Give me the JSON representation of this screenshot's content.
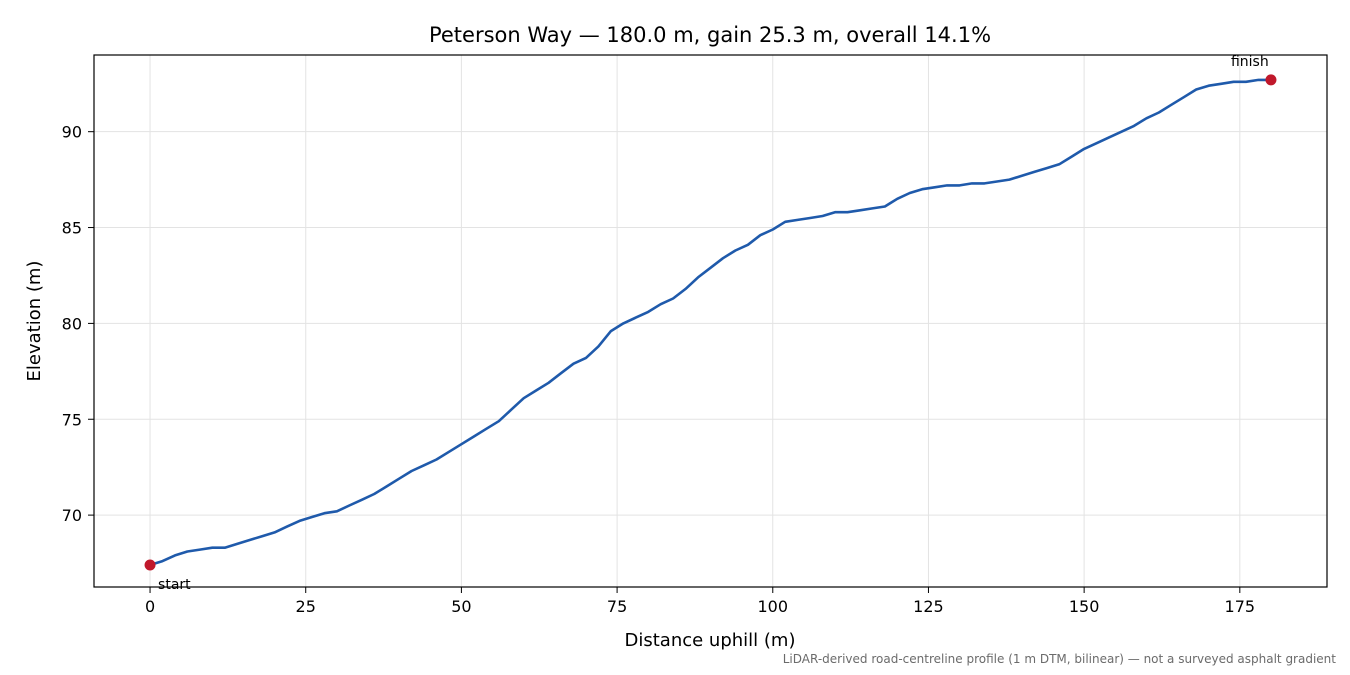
{
  "chart_data": {
    "type": "line",
    "title": "Peterson Way — 180.0 m, gain 25.3 m, overall 14.1%",
    "xlabel": "Distance uphill (m)",
    "ylabel": "Elevation (m)",
    "xlim": [
      -9,
      189
    ],
    "ylim": [
      66.25,
      94.0
    ],
    "xticks": [
      0,
      25,
      50,
      75,
      100,
      125,
      150,
      175
    ],
    "yticks": [
      70,
      75,
      80,
      85,
      90
    ],
    "grid": true,
    "line_color": "#1f5aab",
    "marker_color": "#c0182b",
    "series": [
      {
        "x": [
          0,
          2,
          4,
          6,
          8,
          10,
          12,
          14,
          16,
          18,
          20,
          22,
          24,
          26,
          28,
          30,
          32,
          34,
          36,
          38,
          40,
          42,
          44,
          46,
          48,
          50,
          52,
          54,
          56,
          58,
          60,
          62,
          64,
          66,
          68,
          70,
          72,
          74,
          76,
          78,
          80,
          82,
          84,
          86,
          88,
          90,
          92,
          94,
          96,
          98,
          100,
          102,
          104,
          106,
          108,
          110,
          112,
          114,
          116,
          118,
          120,
          122,
          124,
          126,
          128,
          130,
          132,
          134,
          136,
          138,
          140,
          142,
          144,
          146,
          148,
          150,
          152,
          154,
          156,
          158,
          160,
          162,
          164,
          166,
          168,
          170,
          172,
          174,
          176,
          178,
          180
        ],
        "y": [
          67.4,
          67.6,
          67.9,
          68.1,
          68.2,
          68.3,
          68.3,
          68.5,
          68.7,
          68.9,
          69.1,
          69.4,
          69.7,
          69.9,
          70.1,
          70.2,
          70.5,
          70.8,
          71.1,
          71.5,
          71.9,
          72.3,
          72.6,
          72.9,
          73.3,
          73.7,
          74.1,
          74.5,
          74.9,
          75.5,
          76.1,
          76.5,
          76.9,
          77.4,
          77.9,
          78.2,
          78.8,
          79.6,
          80.0,
          80.3,
          80.6,
          81.0,
          81.3,
          81.8,
          82.4,
          82.9,
          83.4,
          83.8,
          84.1,
          84.6,
          84.9,
          85.3,
          85.4,
          85.5,
          85.6,
          85.8,
          85.8,
          85.9,
          86.0,
          86.1,
          86.5,
          86.8,
          87.0,
          87.1,
          87.2,
          87.2,
          87.3,
          87.3,
          87.4,
          87.5,
          87.7,
          87.9,
          88.1,
          88.3,
          88.7,
          89.1,
          89.4,
          89.7,
          90.0,
          90.3,
          90.7,
          91.0,
          91.4,
          91.8,
          92.2,
          92.4,
          92.5,
          92.6,
          92.6,
          92.7,
          92.7
        ]
      }
    ],
    "annotations": [
      {
        "text": "start",
        "x": 0,
        "y": 67.4
      },
      {
        "text": "finish",
        "x": 180,
        "y": 92.7
      }
    ],
    "footnote": "LiDAR-derived road-centreline profile (1 m DTM, bilinear) — not a surveyed asphalt gradient"
  }
}
